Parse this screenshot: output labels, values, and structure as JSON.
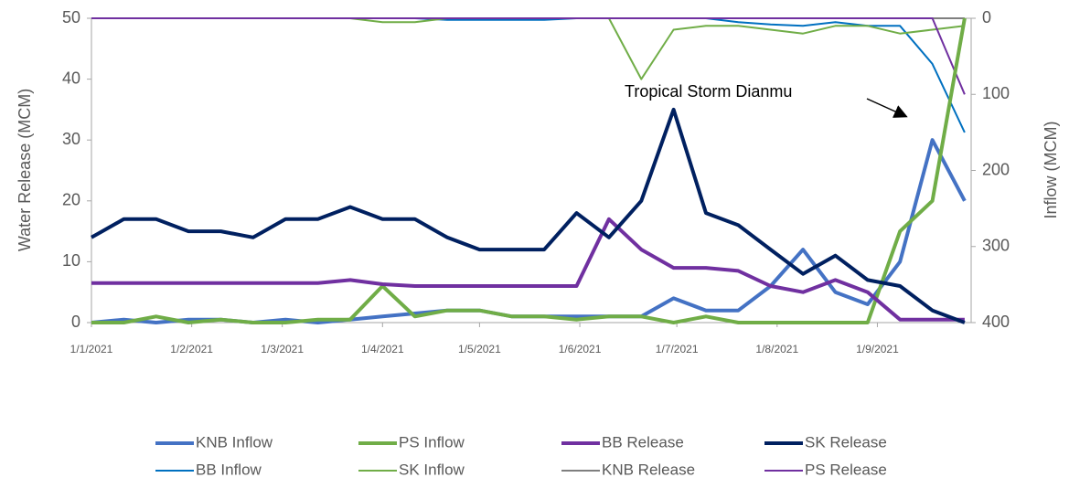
{
  "chart_data": {
    "type": "line",
    "x": [
      "2021-01-01",
      "2021-01-11",
      "2021-01-21",
      "2021-01-31",
      "2021-02-10",
      "2021-02-20",
      "2021-03-02",
      "2021-03-12",
      "2021-03-22",
      "2021-04-01",
      "2021-04-11",
      "2021-04-21",
      "2021-05-01",
      "2021-05-11",
      "2021-05-21",
      "2021-05-31",
      "2021-06-10",
      "2021-06-20",
      "2021-06-30",
      "2021-07-10",
      "2021-07-20",
      "2021-07-30",
      "2021-08-09",
      "2021-08-19",
      "2021-08-29",
      "2021-09-08",
      "2021-09-18",
      "2021-09-28"
    ],
    "xlim": [
      "2021-01-01",
      "2021-09-30"
    ],
    "xticks": [
      {
        "value": "2021-01-01",
        "label": "1/1/2021"
      },
      {
        "value": "2021-02-01",
        "label": "1/2/2021"
      },
      {
        "value": "2021-03-01",
        "label": "1/3/2021"
      },
      {
        "value": "2021-04-01",
        "label": "1/4/2021"
      },
      {
        "value": "2021-05-01",
        "label": "1/5/2021"
      },
      {
        "value": "2021-06-01",
        "label": "1/6/2021"
      },
      {
        "value": "2021-07-01",
        "label": "1/7/2021"
      },
      {
        "value": "2021-08-01",
        "label": "1/8/2021"
      },
      {
        "value": "2021-09-01",
        "label": "1/9/2021"
      }
    ],
    "y_label": "Water Release (MCM)",
    "y2_label": "Inflow (MCM)",
    "ylim": [
      0,
      50
    ],
    "yticks": [
      0,
      10,
      20,
      30,
      40,
      50
    ],
    "y2lim": [
      400,
      0
    ],
    "y2ticks": [
      0,
      100,
      200,
      300,
      400
    ],
    "annotation": "Tropical Storm Dianmu",
    "series": [
      {
        "name": "KNB Inflow",
        "color": "#4472c4",
        "width": 4,
        "values": [
          0,
          0.5,
          0,
          0.5,
          0.5,
          0,
          0.5,
          0,
          0.5,
          1,
          1.5,
          2,
          2,
          1,
          1,
          1,
          1,
          1,
          4,
          2,
          2,
          6,
          12,
          5,
          3,
          10,
          30,
          20
        ]
      },
      {
        "name": "PS Inflow",
        "color": "#70ad47",
        "width": 4,
        "values": [
          0,
          0,
          1,
          0,
          0.5,
          0,
          0,
          0.5,
          0.5,
          6,
          1,
          2,
          2,
          1,
          1,
          0.5,
          1,
          1,
          0,
          1,
          0,
          0,
          0,
          0,
          0,
          15,
          20,
          50
        ]
      },
      {
        "name": "BB Release",
        "color": "#7030a0",
        "width": 4,
        "values": [
          6.5,
          6.5,
          6.5,
          6.5,
          6.5,
          6.5,
          6.5,
          6.5,
          7,
          6.3,
          6,
          6,
          6,
          6,
          6,
          6,
          17,
          12,
          9,
          9,
          8.5,
          6,
          5,
          7,
          5,
          0.5,
          0.5,
          0.5
        ]
      },
      {
        "name": "SK Release",
        "color": "#002060",
        "width": 4,
        "values": [
          14,
          17,
          17,
          15,
          15,
          14,
          17,
          17,
          19,
          17,
          17,
          14,
          12,
          12,
          12,
          18,
          14,
          20,
          35,
          18,
          16,
          12,
          8,
          11,
          7,
          6,
          2,
          0
        ]
      },
      {
        "name": "BB Inflow",
        "color": "#0070c0",
        "width": 2,
        "axis": "y2",
        "values": [
          0,
          0,
          0,
          0,
          0,
          0,
          0,
          0,
          0,
          0,
          0,
          2,
          2,
          2,
          2,
          0,
          0,
          0,
          0,
          0,
          5,
          8,
          10,
          5,
          10,
          10,
          60,
          150
        ]
      },
      {
        "name": "SK Inflow",
        "color": "#70ad47",
        "width": 2,
        "axis": "y2",
        "values": [
          0,
          0,
          0,
          0,
          0,
          0,
          0,
          0,
          0,
          5,
          5,
          0,
          0,
          0,
          0,
          0,
          0,
          80,
          15,
          10,
          10,
          15,
          20,
          10,
          10,
          20,
          15,
          10
        ]
      },
      {
        "name": "KNB Release",
        "color": "#7f7f7f",
        "width": 2,
        "axis": "y2",
        "values": [
          0,
          0,
          0,
          0,
          0,
          0,
          0,
          0,
          0,
          0,
          0,
          0,
          0,
          0,
          0,
          0,
          0,
          0,
          0,
          0,
          0,
          0,
          0,
          0,
          0,
          0,
          0,
          0
        ]
      },
      {
        "name": "PS Release",
        "color": "#7030a0",
        "width": 2,
        "axis": "y2",
        "values": [
          0,
          0,
          0,
          0,
          0,
          0,
          0,
          0,
          0,
          0,
          0,
          0,
          0,
          0,
          0,
          0,
          0,
          0,
          0,
          0,
          0,
          0,
          0,
          0,
          0,
          0,
          0,
          100
        ]
      }
    ]
  }
}
